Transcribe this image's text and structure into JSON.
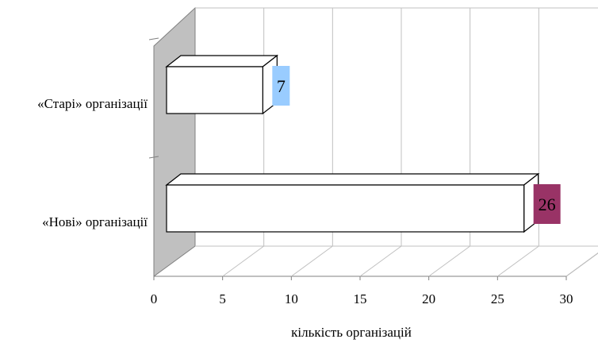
{
  "chart_data": {
    "type": "bar",
    "orientation": "horizontal",
    "style": "3d",
    "categories": [
      "«Старі» організації",
      "«Нові» організації"
    ],
    "values": [
      7,
      26
    ],
    "data_labels": [
      "7",
      "26"
    ],
    "xlabel": "кількість організацій",
    "ylabel": "",
    "xlim": [
      0,
      30
    ],
    "x_ticks": [
      0,
      5,
      10,
      15,
      20,
      25,
      30
    ],
    "grid": true,
    "legend": "none",
    "colors": {
      "bar_fill": "#ffffff",
      "bar_stroke": "#000000",
      "side_wall": "#c0c0c0",
      "gridline": "#c0c0c0",
      "label_bg": [
        "#99ccff",
        "#993366"
      ]
    }
  }
}
